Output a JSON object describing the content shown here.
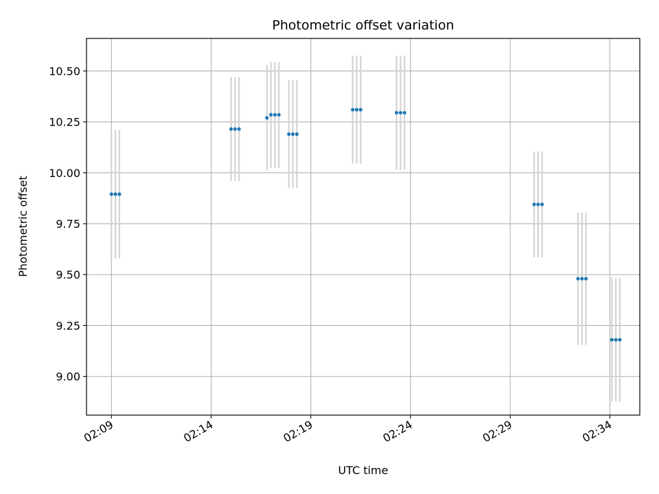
{
  "chart_data": {
    "type": "scatter",
    "title": "Photometric offset variation",
    "xlabel": "UTC time",
    "ylabel": "Photometric offset",
    "x_unit": "UTC time (HH:MM)",
    "xlim": [
      "02:07:45",
      "02:35:30"
    ],
    "ylim": [
      8.81,
      10.66
    ],
    "x_ticks": [
      "02:09",
      "02:14",
      "02:19",
      "02:24",
      "02:29",
      "02:34"
    ],
    "y_ticks": [
      9.0,
      9.25,
      9.5,
      9.75,
      10.0,
      10.25,
      10.5
    ],
    "y_tick_labels": [
      "9.00",
      "9.25",
      "9.50",
      "9.75",
      "10.00",
      "10.25",
      "10.50"
    ],
    "grid": true,
    "colors": {
      "points": "#1f77b4",
      "error_bars": "#d3d3d3",
      "grid": "#b0b0b0"
    },
    "series": [
      {
        "points": [
          {
            "x": "02:09:00",
            "y": 9.895,
            "err": 0.315
          },
          {
            "x": "02:09:12",
            "y": 9.895,
            "err": 0.315
          },
          {
            "x": "02:09:24",
            "y": 9.895,
            "err": 0.315
          },
          {
            "x": "02:15:00",
            "y": 10.215,
            "err": 0.255
          },
          {
            "x": "02:15:12",
            "y": 10.215,
            "err": 0.255
          },
          {
            "x": "02:15:24",
            "y": 10.215,
            "err": 0.255
          },
          {
            "x": "02:16:48",
            "y": 10.27,
            "err": 0.26
          },
          {
            "x": "02:17:00",
            "y": 10.285,
            "err": 0.26
          },
          {
            "x": "02:17:12",
            "y": 10.285,
            "err": 0.26
          },
          {
            "x": "02:17:24",
            "y": 10.285,
            "err": 0.26
          },
          {
            "x": "02:17:54",
            "y": 10.19,
            "err": 0.265
          },
          {
            "x": "02:18:06",
            "y": 10.19,
            "err": 0.265
          },
          {
            "x": "02:18:18",
            "y": 10.19,
            "err": 0.265
          },
          {
            "x": "02:21:06",
            "y": 10.31,
            "err": 0.265
          },
          {
            "x": "02:21:18",
            "y": 10.31,
            "err": 0.265
          },
          {
            "x": "02:21:30",
            "y": 10.31,
            "err": 0.265
          },
          {
            "x": "02:23:18",
            "y": 10.295,
            "err": 0.28
          },
          {
            "x": "02:23:30",
            "y": 10.295,
            "err": 0.28
          },
          {
            "x": "02:23:42",
            "y": 10.295,
            "err": 0.28
          },
          {
            "x": "02:30:12",
            "y": 9.845,
            "err": 0.26
          },
          {
            "x": "02:30:24",
            "y": 9.845,
            "err": 0.26
          },
          {
            "x": "02:30:36",
            "y": 9.845,
            "err": 0.26
          },
          {
            "x": "02:32:24",
            "y": 9.48,
            "err": 0.325
          },
          {
            "x": "02:32:36",
            "y": 9.48,
            "err": 0.325
          },
          {
            "x": "02:32:48",
            "y": 9.48,
            "err": 0.325
          },
          {
            "x": "02:34:06",
            "y": 9.18,
            "err": 0.305
          },
          {
            "x": "02:34:18",
            "y": 9.18,
            "err": 0.305
          },
          {
            "x": "02:34:30",
            "y": 9.18,
            "err": 0.305
          }
        ]
      }
    ]
  }
}
